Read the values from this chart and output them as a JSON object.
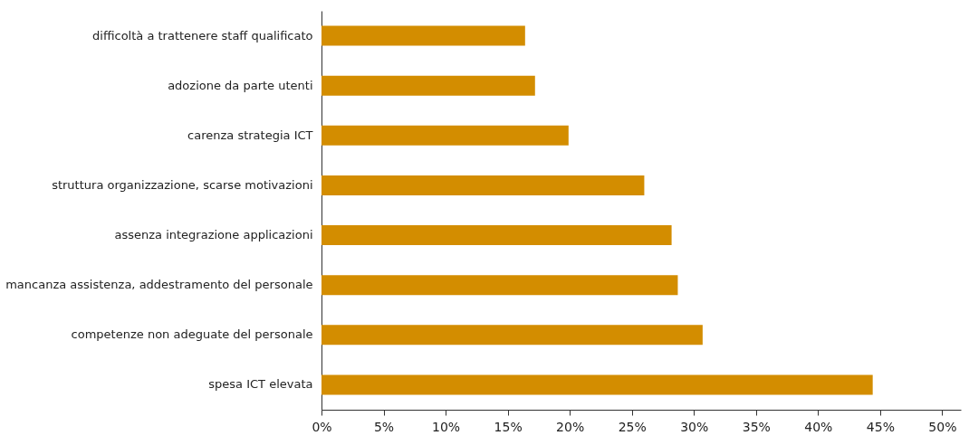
{
  "chart_data": {
    "type": "bar",
    "orientation": "horizontal",
    "categories": [
      "difficoltà a trattenere staff qualificato",
      "adozione da parte utenti",
      "carenza strategia ICT",
      "struttura organizzazione, scarse motivazioni",
      "assenza integrazione applicazioni",
      "mancanza assistenza, addestramento del personale",
      "competenze non adeguate del personale",
      "spesa ICT elevata"
    ],
    "values": [
      16.4,
      17.2,
      19.9,
      26.0,
      28.2,
      28.7,
      30.7,
      44.4
    ],
    "color": "#d38d00",
    "xlim": [
      0,
      51.5
    ],
    "xticks": [
      {
        "value": 0,
        "label": "0%"
      },
      {
        "value": 5,
        "label": "5%"
      },
      {
        "value": 10,
        "label": "10%"
      },
      {
        "value": 15,
        "label": "15%"
      },
      {
        "value": 20,
        "label": "20%"
      },
      {
        "value": 25,
        "label": "25%"
      },
      {
        "value": 30,
        "label": "30%"
      },
      {
        "value": 35,
        "label": "35%"
      },
      {
        "value": 40,
        "label": "40%"
      },
      {
        "value": 45,
        "label": "45%"
      },
      {
        "value": 50,
        "label": "50%"
      }
    ],
    "grid": false
  }
}
